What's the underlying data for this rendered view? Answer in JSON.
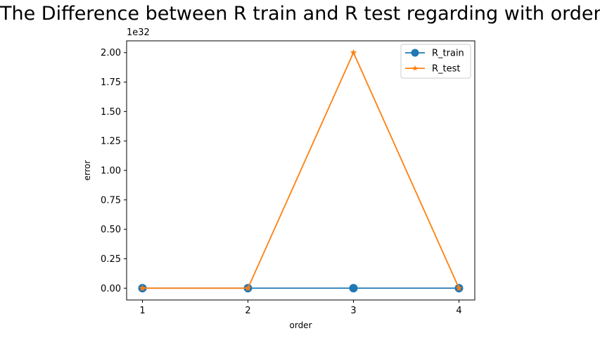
{
  "chart_data": {
    "type": "line",
    "title": "The Difference between R train and R test regarding with order",
    "xlabel": "order",
    "ylabel": "error",
    "x": [
      1,
      2,
      3,
      4
    ],
    "xticks": [
      "1",
      "2",
      "3",
      "4"
    ],
    "yticks": [
      "0.00",
      "0.25",
      "0.50",
      "0.75",
      "1.00",
      "1.25",
      "1.50",
      "1.75",
      "2.00"
    ],
    "y_offset_label": "1e32",
    "y_scale_note": "values in units of 1e32",
    "ylim": [
      -0.1,
      2.1
    ],
    "xlim": [
      0.85,
      4.15
    ],
    "grid": false,
    "legend_position": "upper right",
    "series": [
      {
        "name": "R_train",
        "values": [
          0.0,
          0.0,
          0.0,
          0.0
        ],
        "color": "#1f77b4",
        "marker": "circle"
      },
      {
        "name": "R_test",
        "values": [
          0.0,
          0.0,
          2.0,
          0.0
        ],
        "color": "#ff7f0e",
        "marker": "star"
      }
    ]
  }
}
